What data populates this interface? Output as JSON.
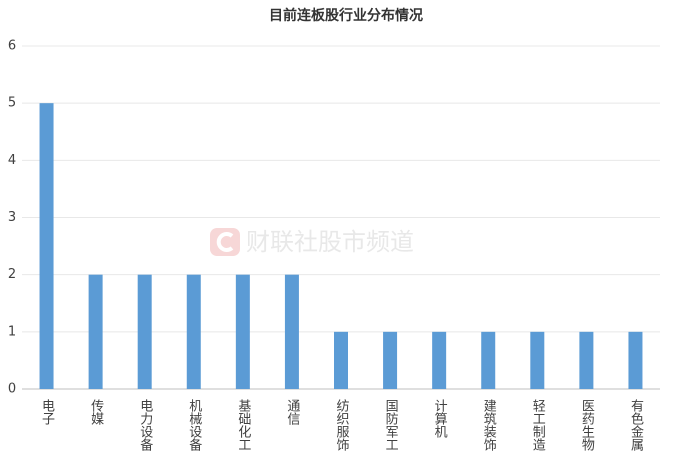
{
  "chart_data": {
    "type": "bar",
    "title": "目前连板股行业分布情况",
    "categories": [
      "电子",
      "传媒",
      "电力设备",
      "机械设备",
      "基础化工",
      "通信",
      "纺织服饰",
      "国防军工",
      "计算机",
      "建筑装饰",
      "轻工制造",
      "医药生物",
      "有色金属"
    ],
    "values": [
      5,
      2,
      2,
      2,
      2,
      2,
      1,
      1,
      1,
      1,
      1,
      1,
      1
    ],
    "color": "#5b9bd5",
    "ylim": [
      0,
      6
    ],
    "yticks": [
      0,
      1,
      2,
      3,
      4,
      5,
      6
    ],
    "grid": true,
    "watermark": "财联社股市频道"
  }
}
